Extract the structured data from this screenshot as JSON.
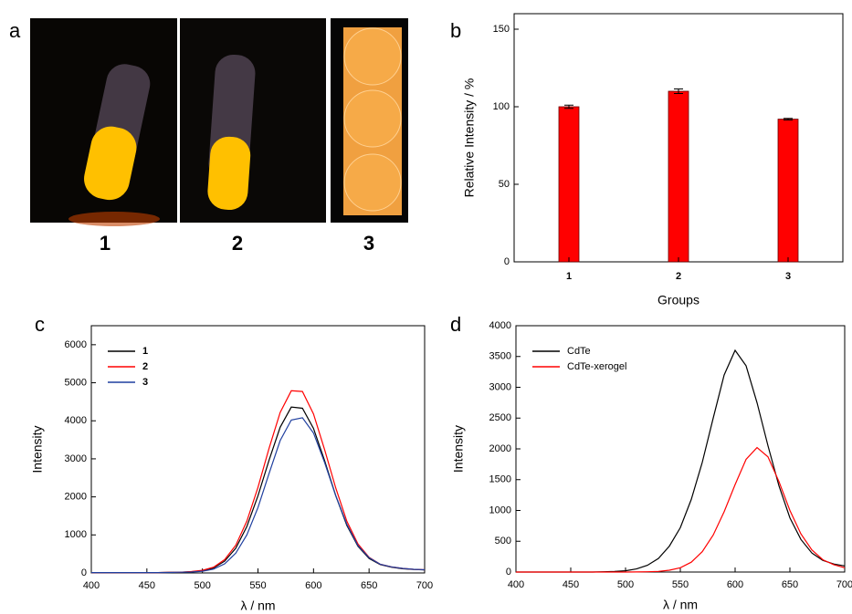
{
  "photos": {
    "panel_label": "a",
    "labels": [
      "1",
      "2",
      "3"
    ]
  },
  "chart_data": [
    {
      "type": "bar",
      "panel_label": "b",
      "x_label": "Groups",
      "y_label": "Relative Intensity / %",
      "categories": [
        "1",
        "2",
        "3"
      ],
      "values": [
        100,
        110,
        92
      ],
      "errors": [
        1,
        1.5,
        0.5
      ],
      "color": "#ff0000",
      "ylim": [
        0,
        160
      ],
      "yticks": [
        0,
        50,
        100,
        150
      ],
      "grid": false
    },
    {
      "type": "line",
      "panel_label": "c",
      "x_label": "λ / nm",
      "y_label": "Intensity",
      "x": [
        400,
        410,
        420,
        430,
        440,
        450,
        460,
        470,
        480,
        490,
        500,
        510,
        520,
        530,
        540,
        550,
        560,
        570,
        580,
        590,
        600,
        610,
        620,
        630,
        640,
        650,
        660,
        670,
        680,
        690,
        700
      ],
      "xlim": [
        400,
        700
      ],
      "xticks": [
        400,
        450,
        500,
        550,
        600,
        650,
        700
      ],
      "ylim": [
        0,
        6500
      ],
      "yticks": [
        0,
        1000,
        2000,
        3000,
        4000,
        5000,
        6000
      ],
      "grid": false,
      "legend": "upper-left",
      "series": [
        {
          "name": "1",
          "color": "#000000",
          "values": [
            10,
            10,
            10,
            10,
            10,
            10,
            10,
            15,
            20,
            30,
            60,
            130,
            310,
            650,
            1220,
            2030,
            2970,
            3830,
            4360,
            4330,
            3800,
            2950,
            2030,
            1250,
            700,
            380,
            220,
            150,
            110,
            90,
            80
          ]
        },
        {
          "name": "2",
          "color": "#ff0000",
          "values": [
            10,
            10,
            10,
            10,
            10,
            10,
            10,
            15,
            20,
            35,
            70,
            150,
            350,
            730,
            1360,
            2250,
            3280,
            4220,
            4790,
            4770,
            4180,
            3240,
            2230,
            1360,
            760,
            410,
            230,
            160,
            120,
            95,
            85
          ]
        },
        {
          "name": "3",
          "color": "#1f3f9f",
          "values": [
            10,
            10,
            10,
            10,
            10,
            10,
            10,
            12,
            18,
            25,
            45,
            100,
            240,
            520,
            1000,
            1720,
            2620,
            3480,
            4020,
            4080,
            3680,
            2900,
            2030,
            1280,
            720,
            400,
            230,
            160,
            120,
            95,
            85
          ]
        }
      ]
    },
    {
      "type": "line",
      "panel_label": "d",
      "x_label": "λ / nm",
      "y_label": "Intensity",
      "x": [
        400,
        410,
        420,
        430,
        440,
        450,
        460,
        470,
        480,
        490,
        500,
        510,
        520,
        530,
        540,
        550,
        560,
        570,
        580,
        590,
        600,
        610,
        620,
        630,
        640,
        650,
        660,
        670,
        680,
        690,
        700
      ],
      "xlim": [
        400,
        700
      ],
      "xticks": [
        400,
        450,
        500,
        550,
        600,
        650,
        700
      ],
      "ylim": [
        0,
        4000
      ],
      "yticks": [
        0,
        500,
        1000,
        1500,
        2000,
        2500,
        3000,
        3500,
        4000
      ],
      "grid": false,
      "legend": "upper-left",
      "series": [
        {
          "name": "CdTe",
          "color": "#000000",
          "values": [
            0,
            0,
            0,
            0,
            0,
            0,
            0,
            0,
            5,
            10,
            20,
            50,
            110,
            220,
            420,
            720,
            1180,
            1780,
            2500,
            3200,
            3600,
            3350,
            2750,
            2050,
            1400,
            880,
            530,
            310,
            190,
            130,
            100
          ]
        },
        {
          "name": "CdTe-xerogel",
          "color": "#ff0000",
          "values": [
            0,
            0,
            0,
            0,
            0,
            0,
            0,
            0,
            0,
            0,
            0,
            2,
            5,
            10,
            30,
            70,
            160,
            330,
            600,
            980,
            1420,
            1830,
            2020,
            1870,
            1470,
            1000,
            620,
            360,
            200,
            120,
            70
          ]
        }
      ]
    }
  ]
}
